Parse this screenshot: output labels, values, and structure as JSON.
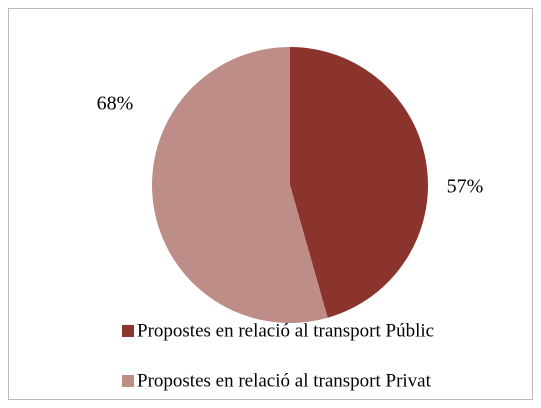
{
  "chart_data": {
    "type": "pie",
    "categories": [
      "Propostes en relació al transport Públic",
      "Propostes en relació al transport Privat"
    ],
    "values": [
      57,
      68
    ],
    "value_labels": [
      "57%",
      "68%"
    ],
    "colors": [
      "#8b342e",
      "#be8d88"
    ]
  }
}
